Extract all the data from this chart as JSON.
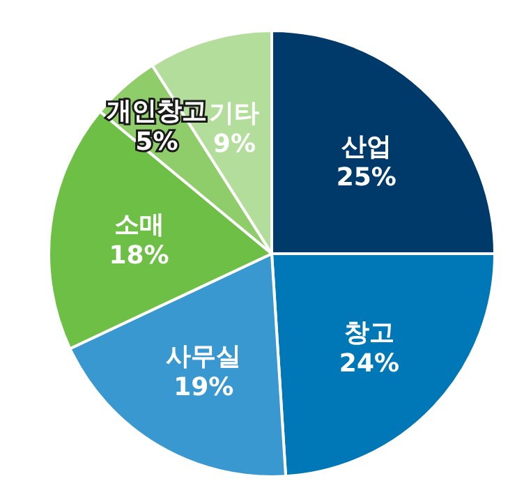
{
  "chart_data": {
    "type": "pie",
    "categories": [
      "산업",
      "창고",
      "사무실",
      "소매",
      "개인창고",
      "기타"
    ],
    "values": [
      25,
      24,
      19,
      18,
      5,
      9
    ],
    "value_labels": [
      "25%",
      "24%",
      "19%",
      "18%",
      "5%",
      "9%"
    ],
    "colors": [
      "#003a6b",
      "#0077b6",
      "#3a98d0",
      "#6dbf45",
      "#8fcc6a",
      "#b3dd9a"
    ],
    "legend": false
  }
}
